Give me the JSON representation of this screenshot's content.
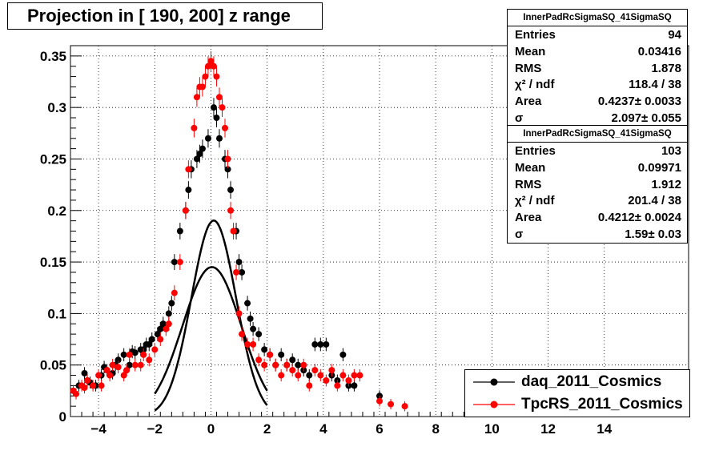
{
  "title": "Projection in [ 190, 200] z range",
  "stats_boxes": [
    {
      "name": "InnerPadRcSigmaSQ_41SigmaSQ",
      "rows": [
        {
          "key": "Entries",
          "value": "94"
        },
        {
          "key": "Mean",
          "value": "0.03416"
        },
        {
          "key": "RMS",
          "value": "1.878"
        },
        {
          "key": "χ² / ndf",
          "value": "118.4 / 38"
        },
        {
          "key": "Area",
          "value": "0.4237± 0.0033"
        },
        {
          "key": "σ",
          "value": "2.097± 0.055"
        }
      ]
    },
    {
      "name": "InnerPadRcSigmaSQ_41SigmaSQ",
      "rows": [
        {
          "key": "Entries",
          "value": "103"
        },
        {
          "key": "Mean",
          "value": "0.09971"
        },
        {
          "key": "RMS",
          "value": "1.912"
        },
        {
          "key": "χ² / ndf",
          "value": "201.4 / 38"
        },
        {
          "key": "Area",
          "value": "0.4212± 0.0024"
        },
        {
          "key": "σ",
          "value": "1.59± 0.03"
        }
      ]
    }
  ],
  "legend": [
    {
      "label": "daq_2011_Cosmics",
      "color": "#000000"
    },
    {
      "label": "TpcRS_2011_Cosmics",
      "color": "#ff0000"
    }
  ],
  "chart_data": {
    "type": "scatter",
    "title": "Projection in [ 190, 200] z range",
    "xlabel": "",
    "ylabel": "",
    "xlim": [
      -5,
      17
    ],
    "ylim": [
      0,
      0.36
    ],
    "x_ticks": [
      -4,
      -2,
      0,
      2,
      4,
      6,
      8,
      10,
      12,
      14
    ],
    "y_ticks": [
      0,
      0.05,
      0.1,
      0.15,
      0.2,
      0.25,
      0.3,
      0.35
    ],
    "y_tick_labels": [
      "0",
      "0.05",
      "0.1",
      "0.15",
      "0.2",
      "0.25",
      "0.3",
      "0.35"
    ],
    "grid": true,
    "legend_position": "bottom-right",
    "series": [
      {
        "name": "daq_2011_Cosmics",
        "color": "#000000",
        "x": [
          -4.9,
          -4.7,
          -4.5,
          -4.4,
          -4.3,
          -4.1,
          -3.9,
          -3.8,
          -3.7,
          -3.5,
          -3.4,
          -3.3,
          -3.1,
          -2.9,
          -2.8,
          -2.7,
          -2.5,
          -2.4,
          -2.3,
          -2.2,
          -2.1,
          -1.9,
          -1.8,
          -1.7,
          -1.5,
          -1.4,
          -1.3,
          -1.1,
          -0.9,
          -0.8,
          -0.7,
          -0.5,
          -0.4,
          -0.3,
          -0.1,
          0.1,
          0.2,
          0.3,
          0.5,
          0.6,
          0.7,
          0.9,
          1.0,
          1.1,
          1.3,
          1.4,
          1.5,
          1.7,
          1.9,
          2.1,
          2.3,
          2.5,
          2.7,
          2.9,
          3.1,
          3.3,
          3.5,
          3.7,
          3.9,
          4.1,
          4.3,
          4.5,
          4.7,
          4.9,
          5.1,
          6.0
        ],
        "y": [
          0.025,
          0.03,
          0.042,
          0.035,
          0.033,
          0.03,
          0.04,
          0.048,
          0.045,
          0.042,
          0.05,
          0.055,
          0.06,
          0.05,
          0.063,
          0.062,
          0.065,
          0.065,
          0.07,
          0.07,
          0.075,
          0.08,
          0.085,
          0.09,
          0.1,
          0.11,
          0.15,
          0.18,
          0.2,
          0.22,
          0.24,
          0.25,
          0.255,
          0.26,
          0.27,
          0.3,
          0.29,
          0.27,
          0.25,
          0.24,
          0.22,
          0.18,
          0.15,
          0.14,
          0.11,
          0.095,
          0.085,
          0.08,
          0.065,
          0.06,
          0.05,
          0.06,
          0.05,
          0.055,
          0.05,
          0.045,
          0.04,
          0.07,
          0.07,
          0.07,
          0.04,
          0.035,
          0.06,
          0.03,
          0.03,
          0.02
        ]
      },
      {
        "name": "TpcRS_2011_Cosmics",
        "color": "#ff0000",
        "x": [
          -4.9,
          -4.8,
          -4.6,
          -4.5,
          -4.4,
          -4.2,
          -4.0,
          -3.9,
          -3.7,
          -3.6,
          -3.5,
          -3.3,
          -3.1,
          -3.0,
          -2.9,
          -2.7,
          -2.5,
          -2.4,
          -2.2,
          -2.0,
          -1.8,
          -1.6,
          -1.5,
          -1.3,
          -1.1,
          -0.9,
          -0.8,
          -0.6,
          -0.5,
          -0.4,
          -0.3,
          -0.2,
          -0.1,
          0.0,
          0.1,
          0.2,
          0.3,
          0.4,
          0.5,
          0.6,
          0.7,
          0.8,
          0.9,
          1.0,
          1.1,
          1.3,
          1.5,
          1.7,
          1.9,
          2.1,
          2.3,
          2.5,
          2.7,
          2.9,
          3.1,
          3.3,
          3.5,
          3.7,
          3.9,
          4.1,
          4.3,
          4.5,
          4.7,
          4.9,
          5.1,
          5.3,
          6.0,
          6.4,
          6.9
        ],
        "y": [
          0.025,
          0.022,
          0.03,
          0.028,
          0.035,
          0.03,
          0.04,
          0.03,
          0.045,
          0.04,
          0.05,
          0.048,
          0.04,
          0.045,
          0.06,
          0.05,
          0.05,
          0.06,
          0.055,
          0.065,
          0.075,
          0.085,
          0.09,
          0.12,
          0.15,
          0.2,
          0.24,
          0.28,
          0.31,
          0.32,
          0.32,
          0.33,
          0.34,
          0.345,
          0.34,
          0.33,
          0.31,
          0.3,
          0.28,
          0.25,
          0.2,
          0.18,
          0.14,
          0.1,
          0.08,
          0.07,
          0.07,
          0.055,
          0.05,
          0.06,
          0.05,
          0.04,
          0.05,
          0.045,
          0.04,
          0.05,
          0.03,
          0.045,
          0.04,
          0.035,
          0.045,
          0.03,
          0.04,
          0.035,
          0.04,
          0.04,
          0.015,
          0.012,
          0.01
        ]
      }
    ],
    "fits": [
      {
        "series": "daq_2011_Cosmics",
        "color": "#000000",
        "mean": 0.03416,
        "sigma": 2.097,
        "area": 0.4237,
        "x_range": [
          -2,
          2
        ]
      },
      {
        "series": "TpcRS_2011_Cosmics",
        "color": "#000000",
        "mean": 0.09971,
        "sigma": 1.59,
        "area": 0.4212,
        "x_range": [
          -2,
          2
        ]
      }
    ]
  }
}
